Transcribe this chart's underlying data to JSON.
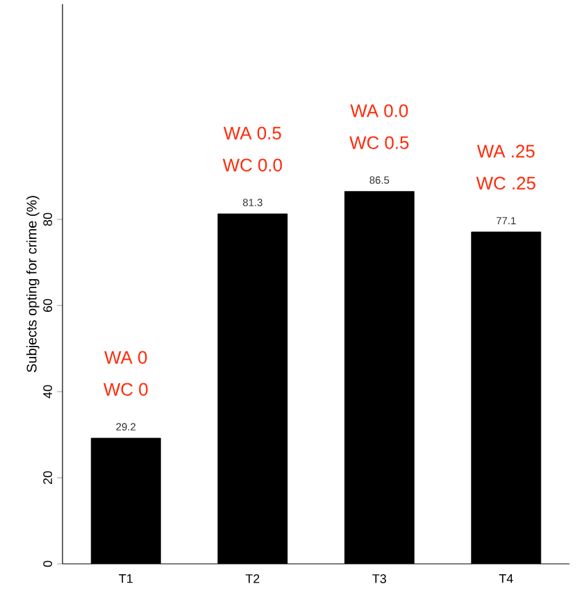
{
  "chart_data": {
    "type": "bar",
    "ylabel": "Subjects opting for crime (%)",
    "categories": [
      "T1",
      "T2",
      "T3",
      "T4"
    ],
    "values": [
      29.2,
      81.3,
      86.5,
      77.1
    ],
    "color": "#000000",
    "ylim": [
      0,
      130
    ],
    "yticks": [
      0,
      20,
      40,
      60,
      80
    ],
    "data_labels": true,
    "grid": false,
    "annotations": [
      "WA 0",
      "WC 0",
      "WA  0.5",
      "WC 0.0",
      "WA 0.0",
      "WC 0.5",
      "WA .25",
      "WC .25"
    ]
  }
}
